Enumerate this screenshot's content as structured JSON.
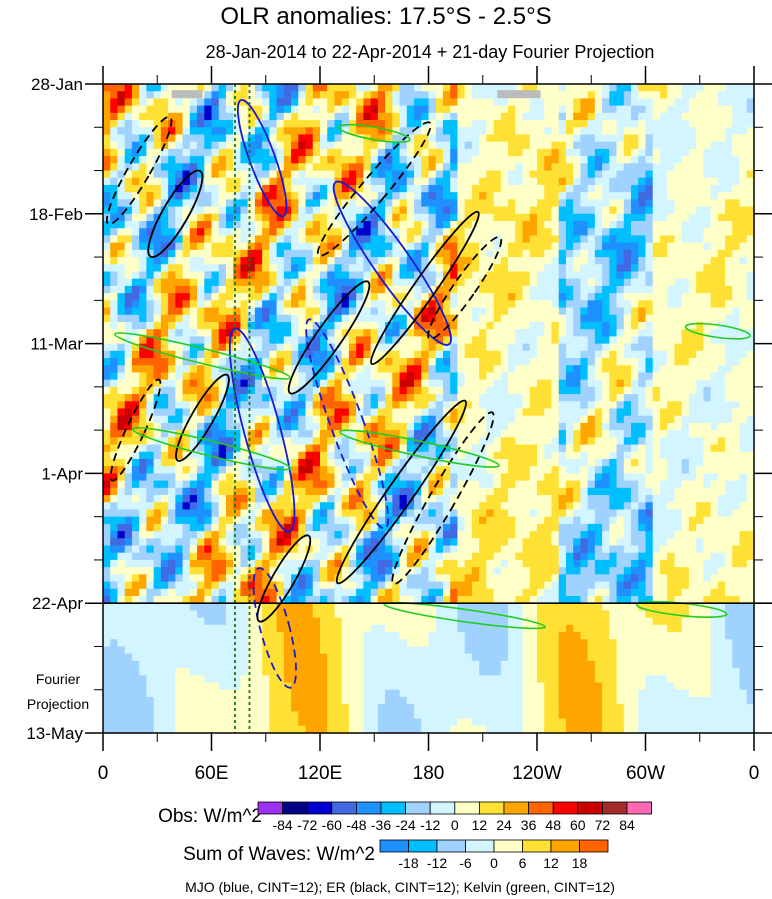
{
  "chart_data": {
    "type": "heatmap",
    "title": "OLR anomalies: 17.5°S - 2.5°S",
    "subtitle": "28-Jan-2014 to 22-Apr-2014 + 21-day Fourier Projection",
    "y_ticks": [
      {
        "label": "28-Jan",
        "day": 0
      },
      {
        "label": "18-Feb",
        "day": 21
      },
      {
        "label": "11-Mar",
        "day": 42
      },
      {
        "label": "1-Apr",
        "day": 63
      },
      {
        "label": "22-Apr",
        "day": 84
      },
      {
        "label": "13-May",
        "day": 105
      }
    ],
    "y_range_days": [
      0,
      105
    ],
    "projection_start_day": 84,
    "projection_label": [
      "Fourier",
      "Projection"
    ],
    "x_ticks": [
      {
        "label": "0",
        "lon": 0
      },
      {
        "label": "60E",
        "lon": 60
      },
      {
        "label": "120E",
        "lon": 120
      },
      {
        "label": "180",
        "lon": 180
      },
      {
        "label": "120W",
        "lon": 240
      },
      {
        "label": "60W",
        "lon": 300
      },
      {
        "label": "0",
        "lon": 360
      }
    ],
    "x_range_lon": [
      0,
      360
    ],
    "obs_colorbar": {
      "label": "Obs: W/m^2",
      "levels": [
        "-84",
        "-72",
        "-60",
        "-48",
        "-36",
        "-24",
        "-12",
        "0",
        "12",
        "24",
        "36",
        "48",
        "60",
        "72",
        "84"
      ],
      "colors": [
        "#9b30f0",
        "#00008b",
        "#0000cd",
        "#4169e1",
        "#1e90ff",
        "#00bfff",
        "#a0d2ff",
        "#d2f5ff",
        "#ffffc8",
        "#ffe135",
        "#ffa500",
        "#ff6400",
        "#ff0000",
        "#c80000",
        "#a52a2a",
        "#ff69b4"
      ]
    },
    "waves_colorbar": {
      "label": "Sum of Waves: W/m^2",
      "levels": [
        "-18",
        "-12",
        "-6",
        "0",
        "6",
        "12",
        "18"
      ],
      "colors": [
        "#1e90ff",
        "#00bfff",
        "#a0d2ff",
        "#d2f5ff",
        "#ffffc8",
        "#ffe135",
        "#ffa500",
        "#ff6400"
      ]
    },
    "footer": "MJO (blue, CINT=12); ER (black, CINT=12); Kelvin (green, CINT=12)",
    "wave_contours": [
      {
        "wave": "MJO",
        "color": "#1a1ad0",
        "sign": "pos",
        "lon": 88,
        "day": 12,
        "rlon": 7,
        "rday": 10,
        "angle": -20
      },
      {
        "wave": "MJO",
        "color": "#1a1ad0",
        "sign": "pos",
        "lon": 88,
        "day": 56,
        "rlon": 10,
        "rday": 17,
        "angle": -15
      },
      {
        "wave": "MJO",
        "color": "#1a1ad0",
        "sign": "pos",
        "lon": 160,
        "day": 29,
        "rlon": 10,
        "rday": 16,
        "angle": -35
      },
      {
        "wave": "MJO",
        "color": "#1a1ad0",
        "sign": "neg",
        "lon": 135,
        "day": 55,
        "rlon": 9,
        "rday": 18,
        "angle": -20
      },
      {
        "wave": "MJO",
        "color": "#1a1ad0",
        "sign": "neg",
        "lon": 95,
        "day": 88,
        "rlon": 8,
        "rday": 10,
        "angle": -15
      },
      {
        "wave": "ER",
        "color": "#000000",
        "sign": "pos",
        "lon": 40,
        "day": 21,
        "rlon": 7,
        "rday": 8,
        "angle": 30
      },
      {
        "wave": "ER",
        "color": "#000000",
        "sign": "pos",
        "lon": 125,
        "day": 41,
        "rlon": 7,
        "rday": 11,
        "angle": 35
      },
      {
        "wave": "ER",
        "color": "#000000",
        "sign": "pos",
        "lon": 178,
        "day": 33,
        "rlon": 6,
        "rday": 15,
        "angle": 35
      },
      {
        "wave": "ER",
        "color": "#000000",
        "sign": "pos",
        "lon": 165,
        "day": 66,
        "rlon": 7,
        "rday": 18,
        "angle": 35
      },
      {
        "wave": "ER",
        "color": "#000000",
        "sign": "pos",
        "lon": 55,
        "day": 54,
        "rlon": 6,
        "rday": 8,
        "angle": 30
      },
      {
        "wave": "ER",
        "color": "#000000",
        "sign": "pos",
        "lon": 100,
        "day": 80,
        "rlon": 6,
        "rday": 8,
        "angle": 30
      },
      {
        "wave": "ER",
        "color": "#000000",
        "sign": "neg",
        "lon": 20,
        "day": 14,
        "rlon": 6,
        "rday": 10,
        "angle": 30
      },
      {
        "wave": "ER",
        "color": "#000000",
        "sign": "neg",
        "lon": 150,
        "day": 17,
        "rlon": 7,
        "rday": 14,
        "angle": 40
      },
      {
        "wave": "ER",
        "color": "#000000",
        "sign": "neg",
        "lon": 188,
        "day": 67,
        "rlon": 7,
        "rday": 16,
        "angle": 30
      },
      {
        "wave": "ER",
        "color": "#000000",
        "sign": "neg",
        "lon": 200,
        "day": 33,
        "rlon": 6,
        "rday": 10,
        "angle": 35
      },
      {
        "wave": "ER",
        "color": "#000000",
        "sign": "neg",
        "lon": 18,
        "day": 56,
        "rlon": 5,
        "rday": 9,
        "angle": 25
      },
      {
        "wave": "Kelvin",
        "color": "#22cc22",
        "sign": "pos",
        "lon": 55,
        "day": 44,
        "rlon": 50,
        "rday": 1.2,
        "angle": 14
      },
      {
        "wave": "Kelvin",
        "color": "#22cc22",
        "sign": "pos",
        "lon": 60,
        "day": 59,
        "rlon": 45,
        "rday": 1.2,
        "angle": 14
      },
      {
        "wave": "Kelvin",
        "color": "#22cc22",
        "sign": "pos",
        "lon": 175,
        "day": 59,
        "rlon": 45,
        "rday": 1.2,
        "angle": 12
      },
      {
        "wave": "Kelvin",
        "color": "#22cc22",
        "sign": "pos",
        "lon": 200,
        "day": 86,
        "rlon": 45,
        "rday": 1,
        "angle": 8
      },
      {
        "wave": "Kelvin",
        "color": "#22cc22",
        "sign": "pos",
        "lon": 150,
        "day": 8,
        "rlon": 20,
        "rday": 1,
        "angle": 10
      },
      {
        "wave": "Kelvin",
        "color": "#22cc22",
        "sign": "pos",
        "lon": 340,
        "day": 40,
        "rlon": 18,
        "rday": 1,
        "angle": 8
      },
      {
        "wave": "Kelvin",
        "color": "#22cc22",
        "sign": "pos",
        "lon": 320,
        "day": 85,
        "rlon": 25,
        "rday": 1,
        "angle": 6
      }
    ]
  }
}
